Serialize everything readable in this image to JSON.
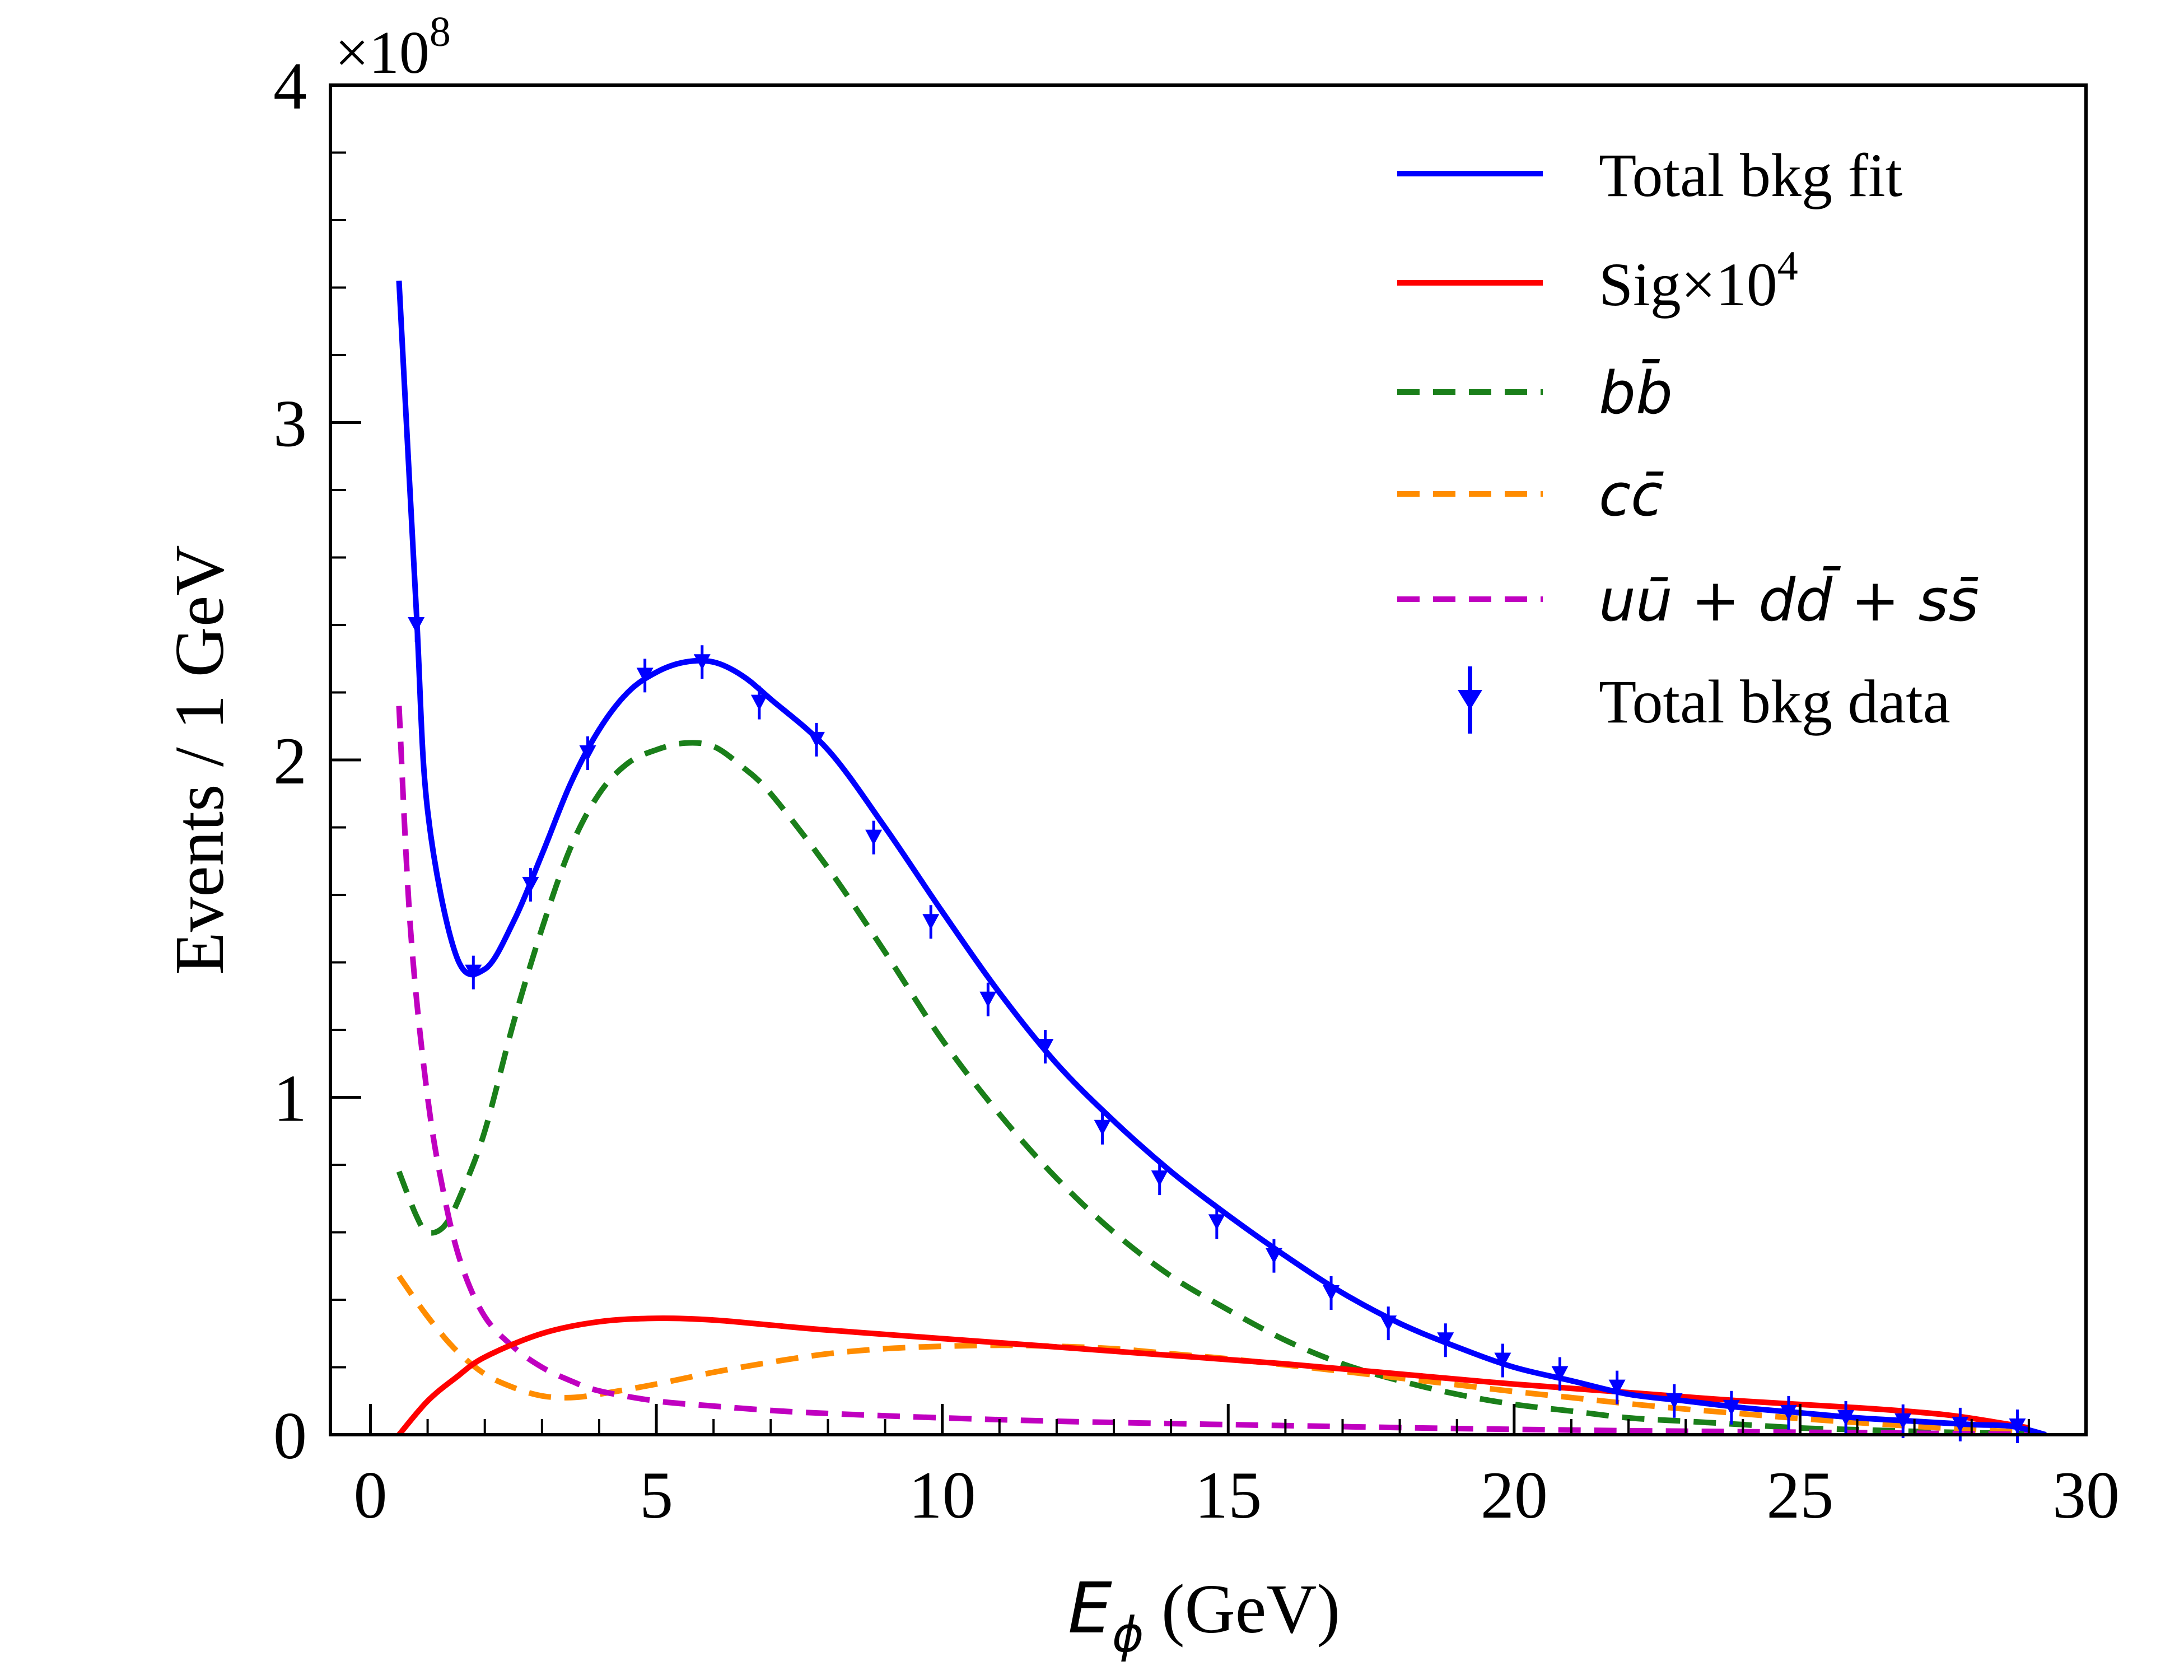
{
  "chart_data": {
    "type": "line",
    "x_scale_factor_label": "×10",
    "x_scale_factor_exp": "8",
    "xlabel_math": "E",
    "xlabel_sub": "ϕ",
    "xlabel_unit": " (GeV)",
    "ylabel": "Events / 1 GeV",
    "xlim": [
      -0.7,
      30
    ],
    "ylim": [
      0,
      4
    ],
    "x_ticks": [
      0,
      5,
      10,
      15,
      20,
      25,
      30
    ],
    "y_ticks": [
      0,
      1,
      2,
      3,
      4
    ],
    "y_scale_exponent": 8,
    "legend_position": "top-right",
    "series": [
      {
        "name": "Total bkg fit",
        "color": "#0000ff",
        "style": "solid",
        "x": [
          0.5,
          0.8,
          1.0,
          1.5,
          2.0,
          2.5,
          3.0,
          3.5,
          4.0,
          4.5,
          5.0,
          5.5,
          6.0,
          6.5,
          7.0,
          8.0,
          9.0,
          10.0,
          11.0,
          12.0,
          13.0,
          14.0,
          15.0,
          16.0,
          17.0,
          18.0,
          19.0,
          20.0,
          21.0,
          22.0,
          23.0,
          24.0,
          25.0,
          26.0,
          27.0,
          28.0,
          28.7,
          29.3
        ],
        "y": [
          3.42,
          2.45,
          1.85,
          1.42,
          1.38,
          1.52,
          1.72,
          1.93,
          2.09,
          2.2,
          2.26,
          2.29,
          2.29,
          2.25,
          2.18,
          2.03,
          1.8,
          1.55,
          1.31,
          1.1,
          0.93,
          0.78,
          0.65,
          0.53,
          0.42,
          0.33,
          0.26,
          0.2,
          0.16,
          0.12,
          0.1,
          0.08,
          0.065,
          0.05,
          0.04,
          0.03,
          0.025,
          0.0
        ]
      },
      {
        "name": "Sig×10",
        "name_exp": "4",
        "color": "#ff0000",
        "style": "solid",
        "x": [
          0.5,
          1.0,
          1.5,
          2.0,
          3.0,
          4.0,
          5.0,
          6.0,
          7.0,
          8.0,
          10.0,
          12.0,
          14.0,
          16.0,
          18.0,
          20.0,
          22.0,
          24.0,
          26.0,
          27.5,
          28.5,
          29.0
        ],
        "y": [
          0.0,
          0.1,
          0.17,
          0.23,
          0.3,
          0.335,
          0.345,
          0.34,
          0.325,
          0.31,
          0.285,
          0.26,
          0.235,
          0.21,
          0.18,
          0.15,
          0.125,
          0.1,
          0.08,
          0.06,
          0.035,
          0.02
        ]
      },
      {
        "name": "bb̄",
        "color": "#1a7f1a",
        "style": "dashed",
        "x": [
          0.5,
          0.8,
          1.0,
          1.3,
          1.6,
          2.0,
          2.5,
          3.0,
          3.5,
          4.0,
          4.5,
          5.0,
          5.5,
          6.0,
          6.5,
          7.0,
          8.0,
          9.0,
          10.0,
          11.0,
          12.0,
          13.0,
          14.0,
          15.0,
          16.0,
          17.0,
          18.0,
          19.0,
          20.0,
          21.0,
          22.0,
          23.0,
          24.0,
          25.0,
          26.0,
          27.0,
          28.0,
          29.0
        ],
        "y": [
          0.78,
          0.65,
          0.6,
          0.62,
          0.72,
          0.9,
          1.22,
          1.5,
          1.74,
          1.9,
          1.99,
          2.03,
          2.05,
          2.04,
          1.98,
          1.9,
          1.68,
          1.43,
          1.17,
          0.95,
          0.76,
          0.6,
          0.47,
          0.37,
          0.28,
          0.21,
          0.16,
          0.12,
          0.09,
          0.07,
          0.05,
          0.04,
          0.03,
          0.02,
          0.015,
          0.01,
          0.006,
          0.003
        ]
      },
      {
        "name": "cc̄",
        "color": "#ff8c00",
        "style": "dashed",
        "x": [
          0.5,
          1.0,
          1.5,
          2.0,
          2.5,
          3.0,
          3.5,
          4.0,
          5.0,
          6.0,
          7.0,
          8.0,
          9.0,
          10.0,
          11.0,
          12.0,
          13.0,
          14.0,
          15.0,
          16.0,
          17.0,
          18.0,
          19.0,
          20.0,
          21.0,
          22.0,
          23.0,
          24.0,
          25.0,
          26.0,
          27.0,
          28.0,
          29.0
        ],
        "y": [
          0.47,
          0.35,
          0.25,
          0.18,
          0.14,
          0.115,
          0.11,
          0.12,
          0.15,
          0.185,
          0.215,
          0.24,
          0.255,
          0.262,
          0.265,
          0.262,
          0.255,
          0.24,
          0.225,
          0.207,
          0.188,
          0.168,
          0.148,
          0.128,
          0.11,
          0.092,
          0.076,
          0.062,
          0.048,
          0.036,
          0.025,
          0.015,
          0.007
        ]
      },
      {
        "name": "uū + dd̄ + ss̄",
        "color": "#c000c0",
        "style": "dashed",
        "x": [
          0.5,
          0.7,
          1.0,
          1.3,
          1.6,
          2.0,
          2.5,
          3.0,
          3.5,
          4.0,
          5.0,
          6.0,
          7.0,
          8.0,
          10.0,
          12.0,
          14.0,
          16.0,
          18.0,
          20.0,
          22.0,
          24.0,
          26.0,
          28.0,
          29.0
        ],
        "y": [
          2.16,
          1.5,
          1.0,
          0.7,
          0.5,
          0.35,
          0.26,
          0.2,
          0.16,
          0.13,
          0.1,
          0.085,
          0.072,
          0.063,
          0.05,
          0.04,
          0.033,
          0.027,
          0.021,
          0.016,
          0.012,
          0.009,
          0.006,
          0.003,
          0.001
        ]
      },
      {
        "name": "Total bkg data",
        "color": "#0000ff",
        "style": "points",
        "x": [
          0.8,
          1.8,
          2.8,
          3.8,
          4.8,
          5.8,
          6.8,
          7.8,
          8.8,
          9.8,
          10.8,
          11.8,
          12.8,
          13.8,
          14.8,
          15.8,
          16.8,
          17.8,
          18.8,
          19.8,
          20.8,
          21.8,
          22.8,
          23.8,
          24.8,
          25.8,
          26.8,
          27.8,
          28.8
        ],
        "y": [
          2.4,
          1.37,
          1.63,
          2.02,
          2.25,
          2.29,
          2.17,
          2.06,
          1.77,
          1.52,
          1.29,
          1.15,
          0.91,
          0.76,
          0.63,
          0.53,
          0.42,
          0.33,
          0.28,
          0.22,
          0.18,
          0.14,
          0.1,
          0.08,
          0.065,
          0.05,
          0.04,
          0.03,
          0.025
        ]
      }
    ]
  }
}
